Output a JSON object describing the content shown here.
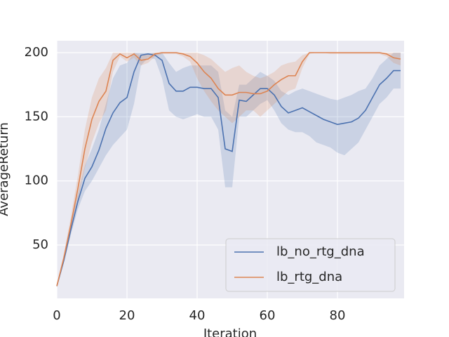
{
  "chart_data": {
    "type": "line",
    "xlabel": "Iteration",
    "ylabel": "AverageReturn",
    "x": [
      0,
      2,
      4,
      6,
      8,
      10,
      12,
      14,
      16,
      18,
      20,
      22,
      24,
      26,
      28,
      30,
      32,
      34,
      36,
      38,
      40,
      42,
      44,
      46,
      48,
      50,
      52,
      54,
      56,
      58,
      60,
      62,
      64,
      66,
      68,
      70,
      72,
      74,
      76,
      78,
      80,
      82,
      84,
      86,
      88,
      90,
      92,
      94,
      96,
      98
    ],
    "series": [
      {
        "name": "lb_no_rtg_dna",
        "color": "#4c72b0",
        "values": [
          18,
          38,
          62,
          84,
          102,
          111,
          124,
          141,
          153,
          161,
          165,
          185,
          198,
          199,
          198,
          194,
          176,
          170,
          170,
          173,
          173,
          172,
          172,
          165,
          125,
          123,
          163,
          162,
          167,
          172,
          172,
          167,
          158,
          153,
          155,
          157,
          154,
          151,
          148,
          146,
          144,
          145,
          146,
          149,
          155,
          165,
          175,
          180,
          186,
          186
        ],
        "lower": [
          17,
          36,
          58,
          78,
          92,
          100,
          110,
          120,
          128,
          134,
          140,
          160,
          190,
          196,
          195,
          180,
          155,
          150,
          148,
          150,
          152,
          150,
          150,
          140,
          95,
          95,
          150,
          150,
          155,
          160,
          163,
          155,
          145,
          140,
          138,
          138,
          135,
          130,
          128,
          126,
          122,
          120,
          125,
          130,
          140,
          150,
          160,
          165,
          172,
          172
        ],
        "upper": [
          19,
          40,
          66,
          90,
          112,
          125,
          140,
          160,
          180,
          190,
          192,
          200,
          200,
          200,
          200,
          200,
          192,
          185,
          188,
          190,
          190,
          190,
          190,
          185,
          155,
          150,
          175,
          175,
          180,
          185,
          182,
          178,
          170,
          167,
          170,
          172,
          170,
          168,
          166,
          164,
          163,
          165,
          167,
          170,
          172,
          180,
          190,
          195,
          200,
          200
        ]
      },
      {
        "name": "lb_rtg_dna",
        "color": "#dd8452",
        "values": [
          18,
          40,
          66,
          94,
          125,
          148,
          162,
          170,
          194,
          199,
          196,
          199,
          194,
          195,
          199,
          200,
          200,
          200,
          199,
          197,
          192,
          185,
          180,
          172,
          167,
          167,
          169,
          169,
          168,
          168,
          170,
          175,
          179,
          182,
          182,
          193,
          200,
          200,
          200,
          200,
          200,
          200,
          200,
          200,
          200,
          200,
          200,
          199,
          196,
          195
        ],
        "lower": [
          17,
          37,
          60,
          85,
          110,
          130,
          145,
          155,
          185,
          197,
          193,
          196,
          190,
          192,
          197,
          199,
          199,
          199,
          197,
          193,
          180,
          170,
          162,
          155,
          150,
          145,
          150,
          155,
          155,
          150,
          155,
          160,
          165,
          170,
          172,
          188,
          199,
          200,
          200,
          199,
          199,
          199,
          199,
          199,
          199,
          199,
          199,
          197,
          192,
          190
        ],
        "upper": [
          19,
          43,
          72,
          104,
          140,
          165,
          180,
          188,
          200,
          200,
          200,
          200,
          198,
          199,
          200,
          200,
          200,
          200,
          200,
          200,
          200,
          198,
          195,
          190,
          185,
          188,
          190,
          185,
          182,
          180,
          182,
          185,
          190,
          192,
          193,
          198,
          200,
          200,
          200,
          200,
          200,
          200,
          200,
          200,
          200,
          200,
          200,
          200,
          200,
          200
        ]
      }
    ],
    "xlim": [
      0,
      99
    ],
    "ylim": [
      8.4,
      209.3
    ],
    "xticks": [
      0,
      20,
      40,
      60,
      80
    ],
    "yticks": [
      50,
      100,
      150,
      200
    ],
    "grid": true,
    "legend": "lower right"
  }
}
